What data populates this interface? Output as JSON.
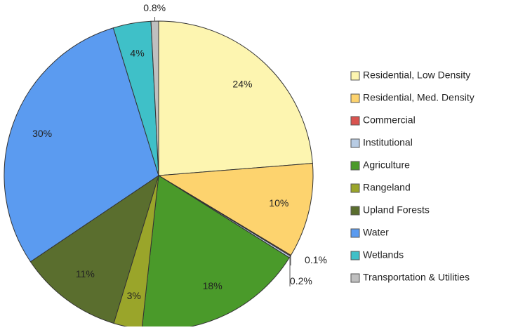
{
  "chart_data": {
    "type": "pie",
    "categories": [
      "Residential, Low Density",
      "Residential, Med. Density",
      "Commercial",
      "Institutional",
      "Agriculture",
      "Rangeland",
      "Upland Forests",
      "Water",
      "Wetlands",
      "Transportation & Utilities"
    ],
    "values": [
      24,
      10,
      0.1,
      0.2,
      18,
      3,
      11,
      30,
      4,
      0.8
    ],
    "value_labels": [
      "24%",
      "10%",
      "0.1%",
      "0.2%",
      "18%",
      "3%",
      "11%",
      "30%",
      "4%",
      "0.8%"
    ],
    "colors": [
      "#fdf5b0",
      "#fdd36e",
      "#d9534f",
      "#b8cce4",
      "#4a9a2a",
      "#9aa52a",
      "#5a6e2e",
      "#5b9bf0",
      "#3fc0c8",
      "#bfbfbf"
    ],
    "legend": "right"
  }
}
